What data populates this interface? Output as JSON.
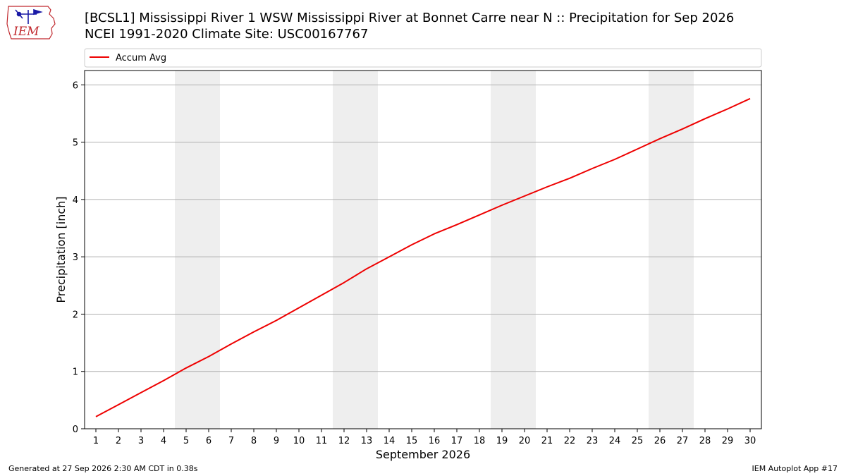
{
  "header": {
    "title_line1": "[BCSL1] Mississippi River 1 WSW Mississippi River at Bonnet Carre near N :: Precipitation for Sep 2026",
    "title_line2": "NCEI 1991-2020 Climate Site: USC00167767",
    "logo_text": "IEM"
  },
  "footer": {
    "generated": "Generated at 27 Sep 2026 2:30 AM CDT in 0.38s",
    "app": "IEM Autoplot App #17"
  },
  "colors": {
    "series": "#ee0000",
    "weekend_shade": "#eeeeee",
    "grid": "#b0b0b0",
    "logo": "#c0282d"
  },
  "chart_data": {
    "type": "line",
    "title": "[BCSL1] Mississippi River 1 WSW Mississippi River at Bonnet Carre near N :: Precipitation for Sep 2026",
    "subtitle": "NCEI 1991-2020 Climate Site: USC00167767",
    "xlabel": "September 2026",
    "ylabel": "Precipitation [inch]",
    "x": [
      1,
      2,
      3,
      4,
      5,
      6,
      7,
      8,
      9,
      10,
      11,
      12,
      13,
      14,
      15,
      16,
      17,
      18,
      19,
      20,
      21,
      22,
      23,
      24,
      25,
      26,
      27,
      28,
      29,
      30
    ],
    "series": [
      {
        "name": "Accum Avg",
        "values": [
          0.21,
          0.42,
          0.63,
          0.84,
          1.06,
          1.26,
          1.48,
          1.69,
          1.89,
          2.11,
          2.33,
          2.55,
          2.79,
          3.0,
          3.21,
          3.4,
          3.56,
          3.73,
          3.9,
          4.06,
          4.22,
          4.37,
          4.54,
          4.7,
          4.88,
          5.06,
          5.23,
          5.41,
          5.58,
          5.76
        ]
      }
    ],
    "xlim": [
      0.5,
      30.5
    ],
    "ylim": [
      0,
      6.25
    ],
    "y_ticks": [
      0,
      1,
      2,
      3,
      4,
      5,
      6
    ],
    "weekend_bands": [
      [
        4.5,
        6.5
      ],
      [
        11.5,
        13.5
      ],
      [
        18.5,
        20.5
      ],
      [
        25.5,
        27.5
      ]
    ],
    "grid": "horizontal",
    "legend_position": "top"
  }
}
